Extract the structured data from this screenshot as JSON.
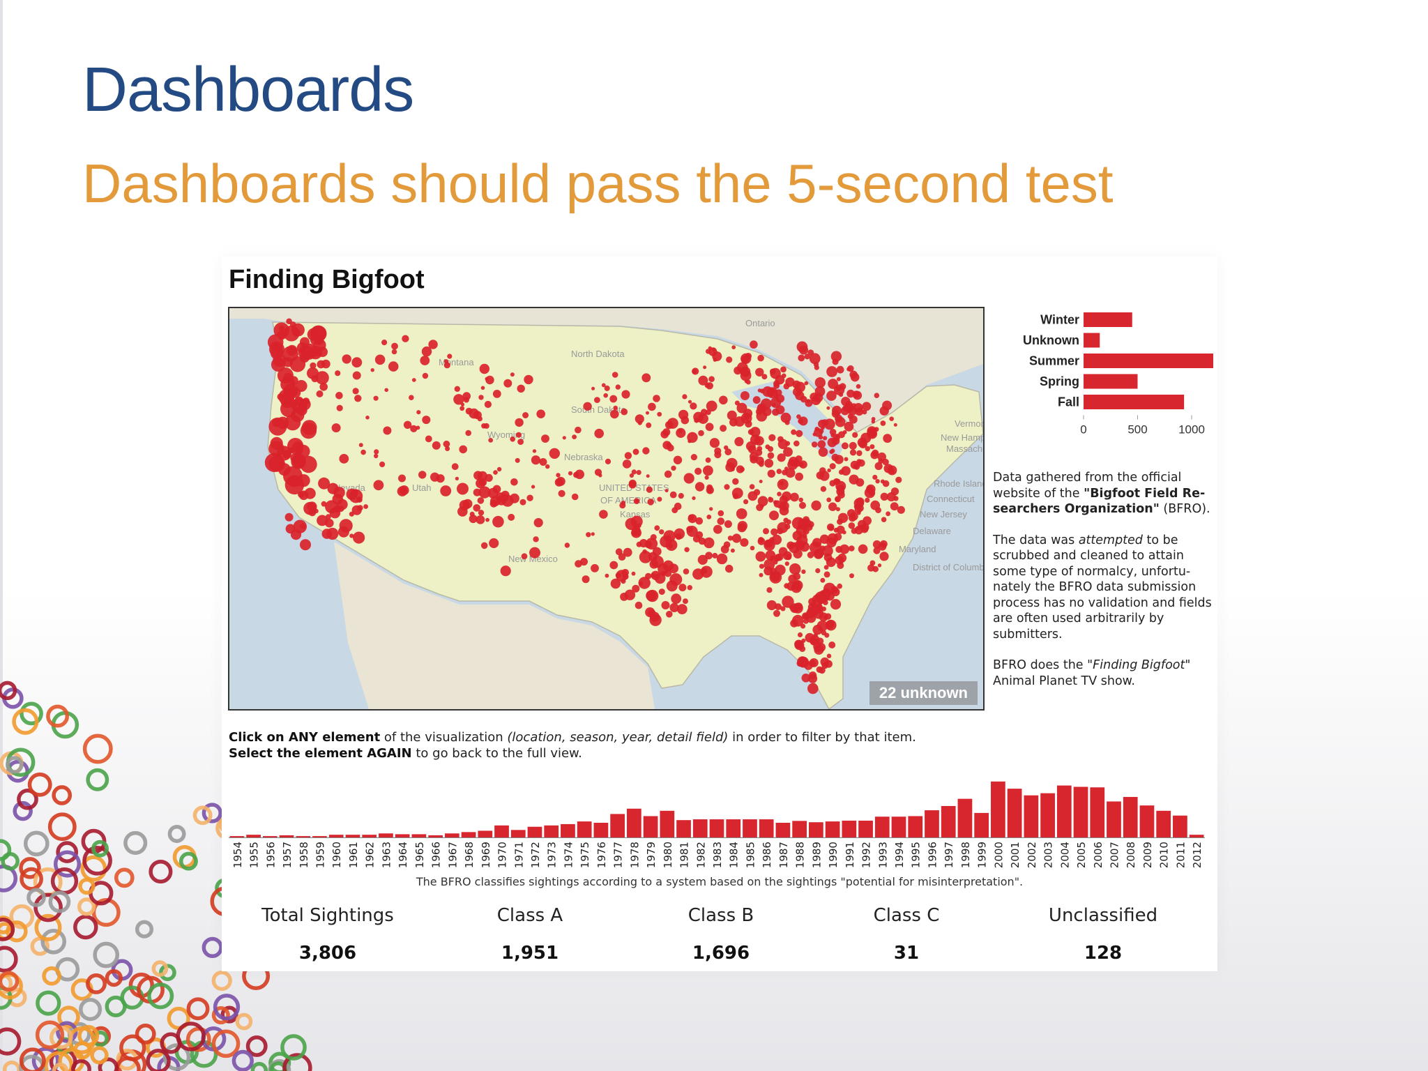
{
  "slide": {
    "title": "Dashboards",
    "subtitle": "Dashboards should pass the 5-second test"
  },
  "dashboard": {
    "title": "Finding Bigfoot",
    "map": {
      "unknown_badge": "22 unknown",
      "place_labels": [
        "Ontario",
        "Montana",
        "North Dakota",
        "South Dakota",
        "Nebraska",
        "Wyoming",
        "Nevada",
        "Utah",
        "UNITED STATES",
        "OF AMERICA",
        "Kansas",
        "New Mexico",
        "Vermont",
        "New Hampshire",
        "Massachusetts",
        "Rhode Island",
        "Connecticut",
        "New Jersey",
        "Delaware",
        "Maryland",
        "District of Columbia"
      ]
    },
    "notes": {
      "p1_a": "Data gathered from the official website of the ",
      "p1_b": "\"Bigfoot Field Re-searchers Organization\"",
      "p1_c": " (BFRO).",
      "p2_a": "The data was ",
      "p2_b": "attempted",
      "p2_c": " to be scrubbed and cleaned to attain some type of normalcy, unfortu-nately the BFRO data submission process has no validation and fields are often used arbitrarily by submitters.",
      "p3_a": "BFRO does the ",
      "p3_b": "\"Finding Bigfoot\"",
      "p3_c": " Animal Planet TV show."
    },
    "instructions": {
      "line1_bold": "Click on ANY element",
      "line1_a": " of the visualization ",
      "line1_italic": "(location, season, year, detail field)",
      "line1_b": " in order to filter by that item.",
      "line2_bold": "Select the element AGAIN",
      "line2_a": " to go back to the full view."
    },
    "class_note": "The BFRO classifies sightings according to a system based on the sightings \"potential for misinterpretation\".",
    "stats": [
      {
        "label": "Total Sightings",
        "value": "3,806"
      },
      {
        "label": "Class A",
        "value": "1,951"
      },
      {
        "label": "Class B",
        "value": "1,696"
      },
      {
        "label": "Class C",
        "value": "31"
      },
      {
        "label": "Unclassified",
        "value": "128"
      }
    ]
  },
  "colors": {
    "title": "#244a83",
    "subtitle": "#e29a3a",
    "bar": "#d7262e",
    "map_dot": "#d9232b"
  },
  "chart_data": [
    {
      "type": "bar",
      "orientation": "horizontal",
      "categories": [
        "Winter",
        "Unknown",
        "Summer",
        "Spring",
        "Fall"
      ],
      "values": [
        450,
        150,
        1200,
        500,
        930
      ],
      "xlim": [
        0,
        1200
      ],
      "xticks": [
        "0",
        "500",
        "1000"
      ]
    },
    {
      "type": "bar",
      "categories": [
        "1954",
        "1955",
        "1956",
        "1957",
        "1958",
        "1959",
        "1960",
        "1961",
        "1962",
        "1963",
        "1964",
        "1965",
        "1966",
        "1967",
        "1968",
        "1969",
        "1970",
        "1971",
        "1972",
        "1973",
        "1974",
        "1975",
        "1976",
        "1977",
        "1978",
        "1979",
        "1980",
        "1981",
        "1982",
        "1983",
        "1984",
        "1985",
        "1986",
        "1987",
        "1988",
        "1989",
        "1990",
        "1991",
        "1992",
        "1993",
        "1994",
        "1995",
        "1996",
        "1997",
        "1998",
        "1999",
        "2000",
        "2001",
        "2002",
        "2003",
        "2004",
        "2005",
        "2006",
        "2007",
        "2008",
        "2009",
        "2010",
        "2011",
        "2012"
      ],
      "values": [
        5,
        10,
        5,
        8,
        5,
        5,
        10,
        10,
        10,
        15,
        12,
        12,
        8,
        15,
        20,
        25,
        45,
        28,
        40,
        45,
        50,
        60,
        55,
        88,
        108,
        80,
        100,
        65,
        68,
        68,
        68,
        68,
        68,
        55,
        62,
        57,
        60,
        63,
        63,
        78,
        78,
        80,
        102,
        118,
        145,
        92,
        210,
        183,
        158,
        166,
        195,
        190,
        188,
        135,
        152,
        120,
        100,
        82,
        10
      ],
      "ylim": [
        0,
        220
      ]
    }
  ]
}
